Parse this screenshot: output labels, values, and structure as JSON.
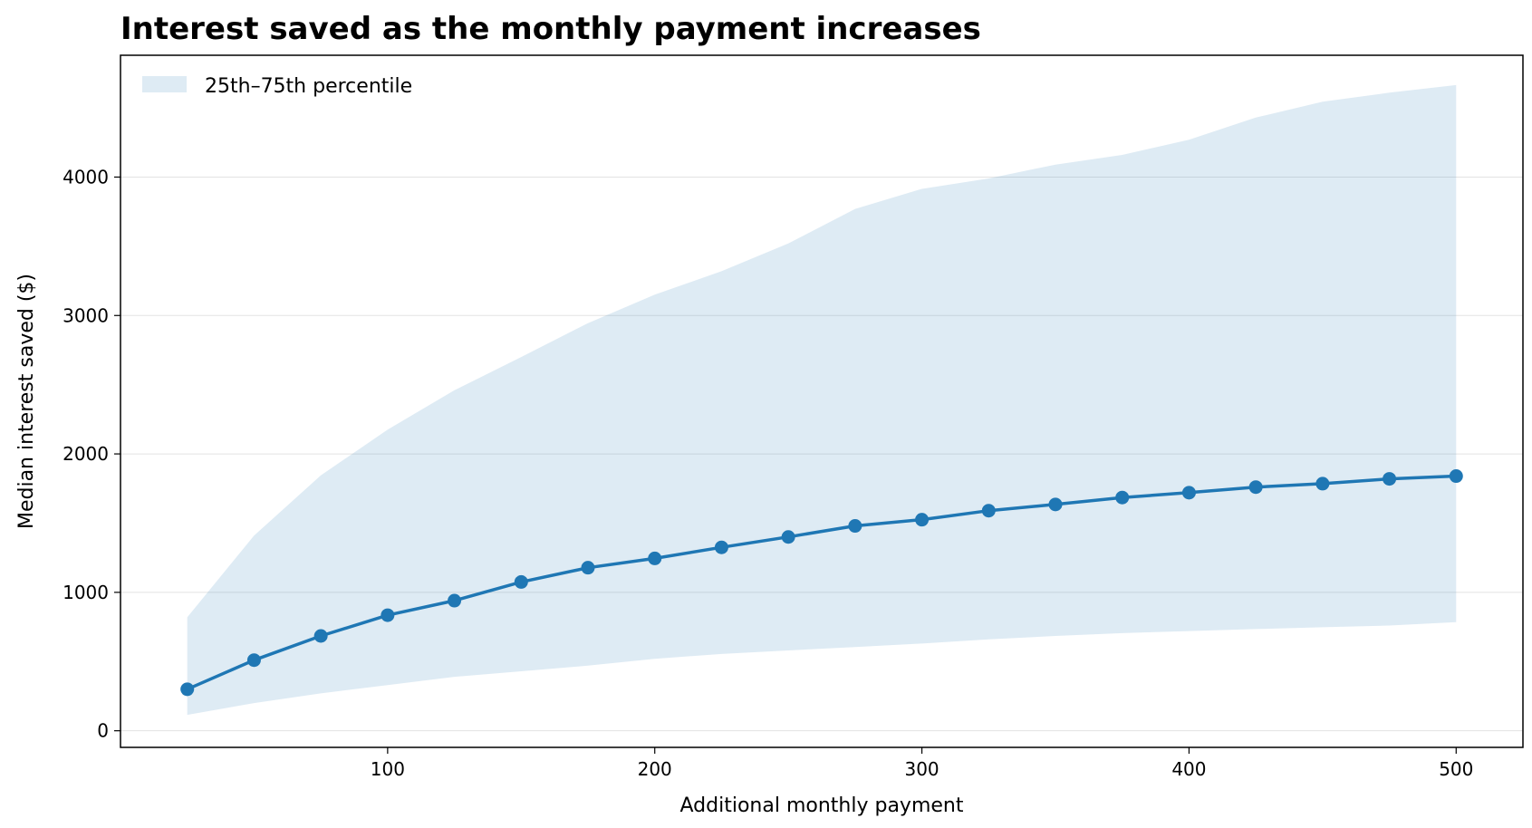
{
  "chart_data": {
    "type": "line",
    "title": "Interest saved as the monthly payment increases",
    "xlabel": "Additional monthly payment",
    "ylabel": "Median interest saved ($)",
    "xlim": [
      0,
      525
    ],
    "ylim": [
      -120,
      4880
    ],
    "x_ticks": [
      100,
      200,
      300,
      400,
      500
    ],
    "y_ticks": [
      0,
      1000,
      2000,
      3000,
      4000
    ],
    "grid": "horizontal",
    "legend_position": "upper-left",
    "x": [
      25,
      50,
      75,
      100,
      125,
      150,
      175,
      200,
      225,
      250,
      275,
      300,
      325,
      350,
      375,
      400,
      425,
      450,
      475,
      500
    ],
    "series": [
      {
        "name": "",
        "kind": "line",
        "color": "#1f77b4",
        "values": [
          300,
          510,
          685,
          835,
          940,
          1075,
          1178,
          1245,
          1325,
          1400,
          1480,
          1525,
          1590,
          1635,
          1685,
          1720,
          1760,
          1785,
          1820,
          1840
        ]
      },
      {
        "name": "25th–75th percentile",
        "kind": "band",
        "color": "#1f77b4",
        "lower": [
          115,
          200,
          270,
          330,
          390,
          430,
          470,
          520,
          555,
          580,
          605,
          630,
          660,
          685,
          705,
          720,
          735,
          748,
          760,
          785
        ],
        "upper": [
          820,
          1410,
          1845,
          2175,
          2460,
          2700,
          2945,
          3150,
          3320,
          3520,
          3770,
          3915,
          3990,
          4090,
          4160,
          4270,
          4430,
          4545,
          4610,
          4665
        ]
      }
    ]
  }
}
